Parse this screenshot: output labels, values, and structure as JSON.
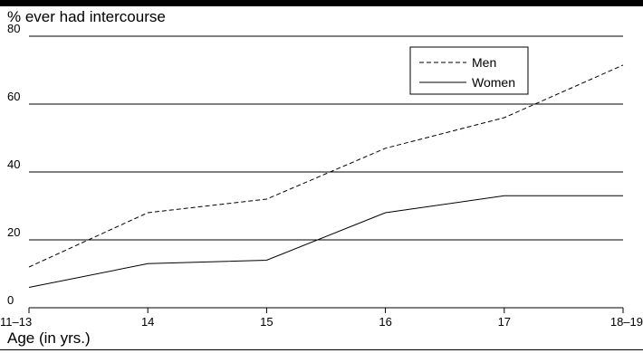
{
  "chart_data": {
    "type": "line",
    "ylabel": "% ever had intercourse",
    "xlabel": "Age (in yrs.)",
    "categories": [
      "11–13",
      "14",
      "15",
      "16",
      "17",
      "18–19"
    ],
    "ylim": [
      0,
      80
    ],
    "yticks": [
      0,
      20,
      40,
      60,
      80
    ],
    "grid": true,
    "legend": "top-right",
    "series": [
      {
        "name": "Men",
        "style": "dashed",
        "values": [
          12,
          28,
          32,
          47,
          56,
          71.5
        ]
      },
      {
        "name": "Women",
        "style": "solid",
        "values": [
          6,
          13,
          14,
          28,
          33,
          33
        ]
      }
    ]
  }
}
